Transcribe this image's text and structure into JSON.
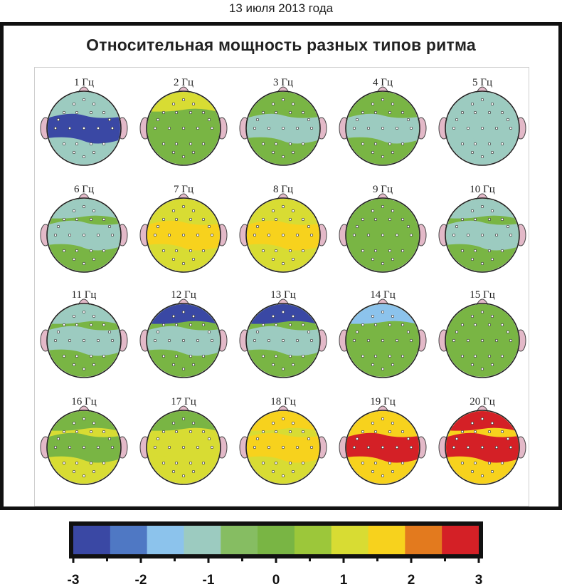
{
  "date_label": "13 июля 2013 года",
  "chart_data": {
    "type": "heatmap",
    "title": "Относительная мощность разных типов ритма",
    "unit_suffix": " Гц",
    "maps": [
      {
        "label": "1 Гц",
        "frontal": -1,
        "central": -3,
        "posterior": -1
      },
      {
        "label": "2 Гц",
        "frontal": 1,
        "central": 0,
        "posterior": 0
      },
      {
        "label": "3 Гц",
        "frontal": 0,
        "central": -1,
        "posterior": 0
      },
      {
        "label": "4 Гц",
        "frontal": 0,
        "central": -1,
        "posterior": 0
      },
      {
        "label": "5 Гц",
        "frontal": -1,
        "central": -1,
        "posterior": -1
      },
      {
        "label": "6 Гц",
        "frontal": -1,
        "central": -1,
        "posterior": 0
      },
      {
        "label": "7 Гц",
        "frontal": 1,
        "central": 2,
        "posterior": 1
      },
      {
        "label": "8 Гц",
        "frontal": 1,
        "central": 2,
        "posterior": 1
      },
      {
        "label": "9 Гц",
        "frontal": 0,
        "central": 0,
        "posterior": 0
      },
      {
        "label": "10 Гц",
        "frontal": -1,
        "central": -1,
        "posterior": 0
      },
      {
        "label": "11 Гц",
        "frontal": -1,
        "central": -1,
        "posterior": 0
      },
      {
        "label": "12 Гц",
        "frontal": -3,
        "central": -1,
        "posterior": 0
      },
      {
        "label": "13 Гц",
        "frontal": -3,
        "central": -1,
        "posterior": 0
      },
      {
        "label": "14 Гц",
        "frontal": -2,
        "central": 0,
        "posterior": 0
      },
      {
        "label": "15 Гц",
        "frontal": 0,
        "central": 0,
        "posterior": 0
      },
      {
        "label": "16 Гц",
        "frontal": 0,
        "central": 0,
        "posterior": 1
      },
      {
        "label": "17 Гц",
        "frontal": 0,
        "central": 1,
        "posterior": 1
      },
      {
        "label": "18 Гц",
        "frontal": 2,
        "central": 2,
        "posterior": 1
      },
      {
        "label": "19 Гц",
        "frontal": 2,
        "central": 3,
        "posterior": 2
      },
      {
        "label": "20 Гц",
        "frontal": 3,
        "central": 3,
        "posterior": 2
      }
    ],
    "colorbar": {
      "min": -3,
      "max": 3,
      "tick_labels": [
        "-3",
        "-2",
        "-1",
        "0",
        "1",
        "2",
        "3"
      ],
      "colors": [
        "#3a48a4",
        "#4f78c4",
        "#8cc3ec",
        "#9ccbc0",
        "#86bd62",
        "#79b544",
        "#9cc73a",
        "#d8dc33",
        "#f7d21d",
        "#e37a1e",
        "#d42026"
      ]
    }
  }
}
